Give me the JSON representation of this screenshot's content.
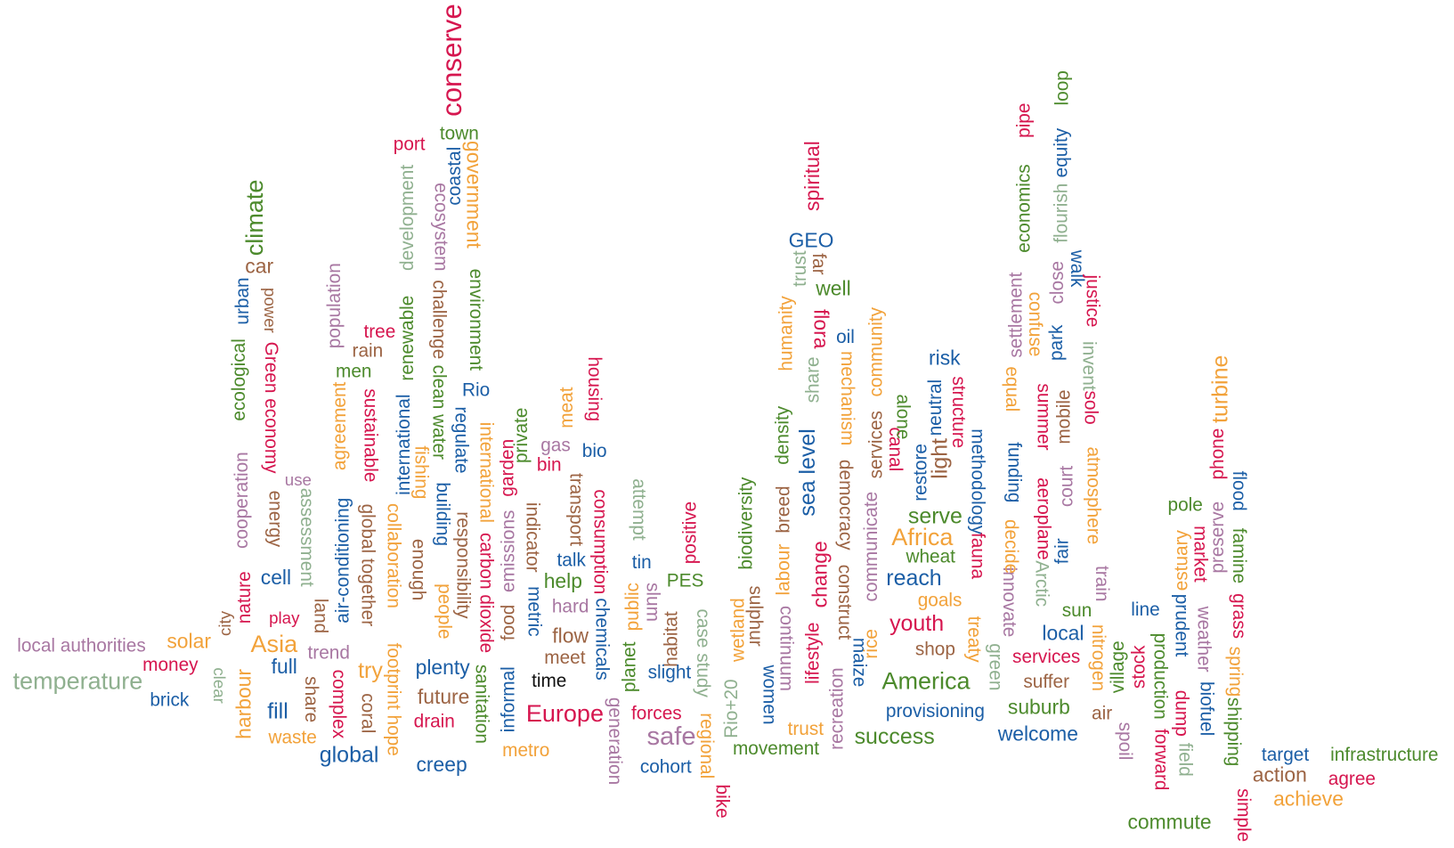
{
  "words": [
    {
      "text": "local authorities",
      "color": "#a877a2"
    },
    {
      "text": "temperature",
      "color": "#8fb08f"
    },
    {
      "text": "money",
      "color": "#d6164f"
    },
    {
      "text": "brick",
      "color": "#1b5ea6"
    },
    {
      "text": "solar",
      "color": "#f2a23a"
    },
    {
      "text": "clear",
      "color": "#8fb08f"
    },
    {
      "text": "city",
      "color": "#9c6444"
    },
    {
      "text": "harbour",
      "color": "#f2a23a"
    },
    {
      "text": "nature",
      "color": "#d6164f"
    },
    {
      "text": "cooperation",
      "color": "#a877a2"
    },
    {
      "text": "ecological",
      "color": "#4c8a2c"
    },
    {
      "text": "urban",
      "color": "#1b5ea6"
    },
    {
      "text": "climate",
      "color": "#4c8a2c"
    },
    {
      "text": "car",
      "color": "#9c6444"
    },
    {
      "text": "power",
      "color": "#9c6444"
    },
    {
      "text": "Green economy",
      "color": "#d6164f"
    },
    {
      "text": "energy",
      "color": "#9c6444"
    },
    {
      "text": "use",
      "color": "#a877a2"
    },
    {
      "text": "assessment",
      "color": "#8fb08f"
    },
    {
      "text": "cell",
      "color": "#1b5ea6"
    },
    {
      "text": "play",
      "color": "#d6164f"
    },
    {
      "text": "Asia",
      "color": "#f2a23a"
    },
    {
      "text": "full",
      "color": "#1b5ea6"
    },
    {
      "text": "fill",
      "color": "#1b5ea6"
    },
    {
      "text": "waste",
      "color": "#f2a23a"
    },
    {
      "text": "trend",
      "color": "#a877a2"
    },
    {
      "text": "land",
      "color": "#9c6444"
    },
    {
      "text": "share",
      "color": "#9c6444"
    },
    {
      "text": "global",
      "color": "#1b5ea6"
    },
    {
      "text": "complex",
      "color": "#d6164f"
    },
    {
      "text": "air-conditioning",
      "color": "#1b5ea6"
    },
    {
      "text": "agreement",
      "color": "#f2a23a"
    },
    {
      "text": "population",
      "color": "#a877a2"
    },
    {
      "text": "men",
      "color": "#4c8a2c"
    },
    {
      "text": "rain",
      "color": "#9c6444"
    },
    {
      "text": "tree",
      "color": "#d6164f"
    },
    {
      "text": "sustainable",
      "color": "#d6164f"
    },
    {
      "text": "global together",
      "color": "#9c6444"
    },
    {
      "text": "try",
      "color": "#f2a23a"
    },
    {
      "text": "coral",
      "color": "#9c6444"
    },
    {
      "text": "footprint hope",
      "color": "#f2a23a"
    },
    {
      "text": "collaboration",
      "color": "#f2a23a"
    },
    {
      "text": "international",
      "color": "#1b5ea6"
    },
    {
      "text": "renewable",
      "color": "#4c8a2c"
    },
    {
      "text": "development",
      "color": "#8fb08f"
    },
    {
      "text": "port",
      "color": "#d6164f"
    },
    {
      "text": "fishing",
      "color": "#f2a23a"
    },
    {
      "text": "enough",
      "color": "#9c6444"
    },
    {
      "text": "plenty",
      "color": "#1b5ea6"
    },
    {
      "text": "future",
      "color": "#9c6444"
    },
    {
      "text": "drain",
      "color": "#d6164f"
    },
    {
      "text": "creep",
      "color": "#1b5ea6"
    },
    {
      "text": "people",
      "color": "#f2a23a"
    },
    {
      "text": "building",
      "color": "#1b5ea6"
    },
    {
      "text": "clean water",
      "color": "#4c8a2c"
    },
    {
      "text": "challenge",
      "color": "#9c6444"
    },
    {
      "text": "ecosystem",
      "color": "#a877a2"
    },
    {
      "text": "coastal",
      "color": "#1b5ea6"
    },
    {
      "text": "town",
      "color": "#4c8a2c"
    },
    {
      "text": "conserve",
      "color": "#d6164f"
    },
    {
      "text": "government",
      "color": "#f2a23a"
    },
    {
      "text": "environment",
      "color": "#4c8a2c"
    },
    {
      "text": "Rio",
      "color": "#1b5ea6"
    },
    {
      "text": "regulate",
      "color": "#1b5ea6"
    },
    {
      "text": "responsibility",
      "color": "#9c6444"
    },
    {
      "text": "international",
      "color": "#f2a23a"
    },
    {
      "text": "carbon dioxide",
      "color": "#d6164f"
    },
    {
      "text": "sanitation",
      "color": "#4c8a2c"
    },
    {
      "text": "garden",
      "color": "#d6164f"
    },
    {
      "text": "emissions",
      "color": "#a877a2"
    },
    {
      "text": "food",
      "color": "#9c6444"
    },
    {
      "text": "informal",
      "color": "#1b5ea6"
    },
    {
      "text": "metro",
      "color": "#f2a23a"
    },
    {
      "text": "private",
      "color": "#4c8a2c"
    },
    {
      "text": "indicator",
      "color": "#9c6444"
    },
    {
      "text": "metric",
      "color": "#1b5ea6"
    },
    {
      "text": "bin",
      "color": "#d6164f"
    },
    {
      "text": "gas",
      "color": "#a877a2"
    },
    {
      "text": "meat",
      "color": "#f2a23a"
    },
    {
      "text": "transport",
      "color": "#9c6444"
    },
    {
      "text": "talk",
      "color": "#1b5ea6"
    },
    {
      "text": "help",
      "color": "#4c8a2c"
    },
    {
      "text": "hard",
      "color": "#a877a2"
    },
    {
      "text": "flow",
      "color": "#9c6444"
    },
    {
      "text": "meet",
      "color": "#9c6444"
    },
    {
      "text": "time",
      "color": "#111111"
    },
    {
      "text": "Europe",
      "color": "#d6164f"
    },
    {
      "text": "housing",
      "color": "#d6164f"
    },
    {
      "text": "bio",
      "color": "#1b5ea6"
    },
    {
      "text": "consumption",
      "color": "#d6164f"
    },
    {
      "text": "chemicals",
      "color": "#1b5ea6"
    },
    {
      "text": "generation",
      "color": "#a877a2"
    },
    {
      "text": "planet",
      "color": "#4c8a2c"
    },
    {
      "text": "public",
      "color": "#f2a23a"
    },
    {
      "text": "tin",
      "color": "#1b5ea6"
    },
    {
      "text": "attempt",
      "color": "#8fb08f"
    },
    {
      "text": "slum",
      "color": "#a877a2"
    },
    {
      "text": "habitat",
      "color": "#9c6444"
    },
    {
      "text": "PES",
      "color": "#4c8a2c"
    },
    {
      "text": "positive",
      "color": "#d6164f"
    },
    {
      "text": "slight",
      "color": "#1b5ea6"
    },
    {
      "text": "forces",
      "color": "#d6164f"
    },
    {
      "text": "safe",
      "color": "#a877a2"
    },
    {
      "text": "cohort",
      "color": "#1b5ea6"
    },
    {
      "text": "case study",
      "color": "#8fb08f"
    },
    {
      "text": "regional",
      "color": "#f2a23a"
    },
    {
      "text": "bike",
      "color": "#d6164f"
    },
    {
      "text": "Rio+20",
      "color": "#8fb08f"
    },
    {
      "text": "wetland",
      "color": "#f2a23a"
    },
    {
      "text": "biodiversity",
      "color": "#4c8a2c"
    },
    {
      "text": "sulphur",
      "color": "#9c6444"
    },
    {
      "text": "women",
      "color": "#1b5ea6"
    },
    {
      "text": "movement",
      "color": "#4c8a2c"
    },
    {
      "text": "continuum",
      "color": "#a877a2"
    },
    {
      "text": "labour",
      "color": "#f2a23a"
    },
    {
      "text": "breed",
      "color": "#9c6444"
    },
    {
      "text": "density",
      "color": "#4c8a2c"
    },
    {
      "text": "humanity",
      "color": "#f2a23a"
    },
    {
      "text": "trust",
      "color": "#8fb08f"
    },
    {
      "text": "share",
      "color": "#8fb08f"
    },
    {
      "text": "sea level",
      "color": "#1b5ea6"
    },
    {
      "text": "change",
      "color": "#d6164f"
    },
    {
      "text": "lifestyle",
      "color": "#d6164f"
    },
    {
      "text": "trust",
      "color": "#f2a23a"
    },
    {
      "text": "GEO",
      "color": "#1b5ea6"
    },
    {
      "text": "far",
      "color": "#9c6444"
    },
    {
      "text": "well",
      "color": "#4c8a2c"
    },
    {
      "text": "flora",
      "color": "#d6164f"
    },
    {
      "text": "spiritual",
      "color": "#d6164f"
    },
    {
      "text": "oil",
      "color": "#1b5ea6"
    },
    {
      "text": "mechanism",
      "color": "#f2a23a"
    },
    {
      "text": "democracy",
      "color": "#9c6444"
    },
    {
      "text": "construct",
      "color": "#9c6444"
    },
    {
      "text": "recreation",
      "color": "#a877a2"
    },
    {
      "text": "maize",
      "color": "#1b5ea6"
    },
    {
      "text": "rice",
      "color": "#f2a23a"
    },
    {
      "text": "communicate",
      "color": "#a877a2"
    },
    {
      "text": "services",
      "color": "#9c6444"
    },
    {
      "text": "community",
      "color": "#f2a23a"
    },
    {
      "text": "success",
      "color": "#4c8a2c"
    },
    {
      "text": "provisioning",
      "color": "#1b5ea6"
    },
    {
      "text": "America",
      "color": "#4c8a2c"
    },
    {
      "text": "youth",
      "color": "#d6164f"
    },
    {
      "text": "shop",
      "color": "#9c6444"
    },
    {
      "text": "goals",
      "color": "#f2a23a"
    },
    {
      "text": "reach",
      "color": "#1b5ea6"
    },
    {
      "text": "wheat",
      "color": "#4c8a2c"
    },
    {
      "text": "Africa",
      "color": "#f2a23a"
    },
    {
      "text": "serve",
      "color": "#4c8a2c"
    },
    {
      "text": "canal",
      "color": "#d6164f"
    },
    {
      "text": "alone",
      "color": "#4c8a2c"
    },
    {
      "text": "restore",
      "color": "#1b5ea6"
    },
    {
      "text": "light",
      "color": "#9c6444"
    },
    {
      "text": "neutral",
      "color": "#1b5ea6"
    },
    {
      "text": "risk",
      "color": "#1b5ea6"
    },
    {
      "text": "structure",
      "color": "#d6164f"
    },
    {
      "text": "methodology",
      "color": "#1b5ea6"
    },
    {
      "text": "fauna",
      "color": "#d6164f"
    },
    {
      "text": "treaty",
      "color": "#f2a23a"
    },
    {
      "text": "green",
      "color": "#8fb08f"
    },
    {
      "text": "suburb",
      "color": "#4c8a2c"
    },
    {
      "text": "welcome",
      "color": "#1b5ea6"
    },
    {
      "text": "suffer",
      "color": "#9c6444"
    },
    {
      "text": "services",
      "color": "#d6164f"
    },
    {
      "text": "local",
      "color": "#1b5ea6"
    },
    {
      "text": "sun",
      "color": "#4c8a2c"
    },
    {
      "text": "innovate",
      "color": "#a877a2"
    },
    {
      "text": "decide",
      "color": "#f2a23a"
    },
    {
      "text": "funding",
      "color": "#1b5ea6"
    },
    {
      "text": "equal",
      "color": "#f2a23a"
    },
    {
      "text": "settlement",
      "color": "#a877a2"
    },
    {
      "text": "economics",
      "color": "#4c8a2c"
    },
    {
      "text": "pipe",
      "color": "#d6164f"
    },
    {
      "text": "confuse",
      "color": "#f2a23a"
    },
    {
      "text": "summer",
      "color": "#d6164f"
    },
    {
      "text": "aeroplane",
      "color": "#d6164f"
    },
    {
      "text": "Arctic",
      "color": "#8fb08f"
    },
    {
      "text": "fair",
      "color": "#1b5ea6"
    },
    {
      "text": "court",
      "color": "#a877a2"
    },
    {
      "text": "mobile",
      "color": "#9c6444"
    },
    {
      "text": "park",
      "color": "#1b5ea6"
    },
    {
      "text": "close",
      "color": "#a877a2"
    },
    {
      "text": "flourish",
      "color": "#8fb08f"
    },
    {
      "text": "equity",
      "color": "#1b5ea6"
    },
    {
      "text": "loop",
      "color": "#4c8a2c"
    },
    {
      "text": "walk",
      "color": "#1b5ea6"
    },
    {
      "text": "justice",
      "color": "#d6164f"
    },
    {
      "text": "invent",
      "color": "#8fb08f"
    },
    {
      "text": "solo",
      "color": "#d6164f"
    },
    {
      "text": "atmosphere",
      "color": "#f2a23a"
    },
    {
      "text": "train",
      "color": "#a877a2"
    },
    {
      "text": "nitrogen",
      "color": "#f2a23a"
    },
    {
      "text": "air",
      "color": "#9c6444"
    },
    {
      "text": "village",
      "color": "#4c8a2c"
    },
    {
      "text": "spoil",
      "color": "#a877a2"
    },
    {
      "text": "stock",
      "color": "#d6164f"
    },
    {
      "text": "line",
      "color": "#1b5ea6"
    },
    {
      "text": "production",
      "color": "#4c8a2c"
    },
    {
      "text": "forward",
      "color": "#d6164f"
    },
    {
      "text": "commute",
      "color": "#4c8a2c"
    },
    {
      "text": "estuary",
      "color": "#f2a23a"
    },
    {
      "text": "prudent",
      "color": "#1b5ea6"
    },
    {
      "text": "dump",
      "color": "#d6164f"
    },
    {
      "text": "field",
      "color": "#8fb08f"
    },
    {
      "text": "pole",
      "color": "#4c8a2c"
    },
    {
      "text": "market",
      "color": "#d6164f"
    },
    {
      "text": "weather",
      "color": "#a877a2"
    },
    {
      "text": "biofuel",
      "color": "#1b5ea6"
    },
    {
      "text": "preserve",
      "color": "#a877a2"
    },
    {
      "text": "phone",
      "color": "#d6164f"
    },
    {
      "text": "turbine",
      "color": "#f2a23a"
    },
    {
      "text": "flood",
      "color": "#1b5ea6"
    },
    {
      "text": "famine",
      "color": "#4c8a2c"
    },
    {
      "text": "grass",
      "color": "#d6164f"
    },
    {
      "text": "spring",
      "color": "#f2a23a"
    },
    {
      "text": "shipping",
      "color": "#4c8a2c"
    },
    {
      "text": "simple",
      "color": "#d6164f"
    },
    {
      "text": "target",
      "color": "#1b5ea6"
    },
    {
      "text": "action",
      "color": "#9c6444"
    },
    {
      "text": "achieve",
      "color": "#f2a23a"
    },
    {
      "text": "infrastructure",
      "color": "#4c8a2c"
    },
    {
      "text": "agree",
      "color": "#d6164f"
    }
  ]
}
